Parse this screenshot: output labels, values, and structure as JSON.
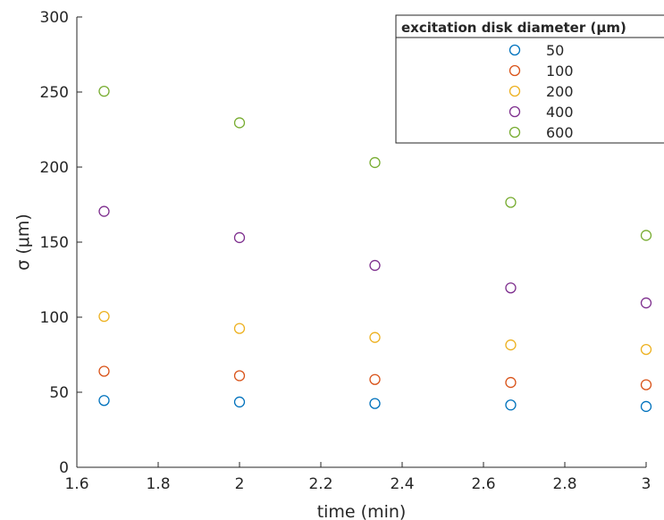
{
  "chart_data": {
    "type": "scatter",
    "xlabel": "time (min)",
    "ylabel": "σ (μm)",
    "xlim": [
      1.6,
      3.0
    ],
    "ylim": [
      0,
      300
    ],
    "xticks": [
      "1.6",
      "1.8",
      "2",
      "2.2",
      "2.4",
      "2.6",
      "2.8",
      "3"
    ],
    "yticks": [
      "0",
      "50",
      "100",
      "150",
      "200",
      "250",
      "300"
    ],
    "x": [
      1.667,
      2.0,
      2.333,
      2.667,
      3.0
    ],
    "legend": {
      "title": "excitation disk diameter (μm)",
      "placement": "top-right"
    },
    "series": [
      {
        "name": "50",
        "color": "#0072BD",
        "values": [
          44.5,
          43.5,
          42.5,
          41.5,
          40.5
        ]
      },
      {
        "name": "100",
        "color": "#D95319",
        "values": [
          64,
          61,
          58.5,
          56.5,
          55
        ]
      },
      {
        "name": "200",
        "color": "#EDB120",
        "values": [
          100.5,
          92.5,
          86.5,
          81.5,
          78.5
        ]
      },
      {
        "name": "400",
        "color": "#7E2F8E",
        "values": [
          170.5,
          153,
          134.5,
          119.5,
          109.5
        ]
      },
      {
        "name": "600",
        "color": "#77AC30",
        "values": [
          250.5,
          229.5,
          203,
          176.5,
          154.5
        ]
      }
    ],
    "marker": "open-circle",
    "grid": false
  }
}
